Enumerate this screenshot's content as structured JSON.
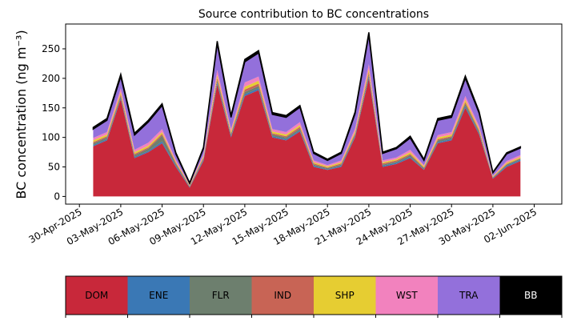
{
  "chart_data": {
    "type": "stacked_area",
    "title": "Source contribution to BC concentrations",
    "ylabel": "BC concentration (ng m⁻³)",
    "x": [
      "2025-05-01",
      "2025-05-02",
      "2025-05-03",
      "2025-05-04",
      "2025-05-05",
      "2025-05-06",
      "2025-05-07",
      "2025-05-08",
      "2025-05-09",
      "2025-05-10",
      "2025-05-11",
      "2025-05-12",
      "2025-05-13",
      "2025-05-14",
      "2025-05-15",
      "2025-05-16",
      "2025-05-17",
      "2025-05-18",
      "2025-05-19",
      "2025-05-20",
      "2025-05-21",
      "2025-05-22",
      "2025-05-23",
      "2025-05-24",
      "2025-05-25",
      "2025-05-26",
      "2025-05-27",
      "2025-05-28",
      "2025-05-29",
      "2025-05-30",
      "2025-05-31",
      "2025-06-01"
    ],
    "xlim": [
      "2025-04-29",
      "2025-06-04"
    ],
    "xticks": [
      {
        "value": "2025-04-30",
        "label": "30-Apr-2025"
      },
      {
        "value": "2025-05-03",
        "label": "03-May-2025"
      },
      {
        "value": "2025-05-06",
        "label": "06-May-2025"
      },
      {
        "value": "2025-05-09",
        "label": "09-May-2025"
      },
      {
        "value": "2025-05-12",
        "label": "12-May-2025"
      },
      {
        "value": "2025-05-15",
        "label": "15-May-2025"
      },
      {
        "value": "2025-05-18",
        "label": "18-May-2025"
      },
      {
        "value": "2025-05-21",
        "label": "21-May-2025"
      },
      {
        "value": "2025-05-24",
        "label": "24-May-2025"
      },
      {
        "value": "2025-05-27",
        "label": "27-May-2025"
      },
      {
        "value": "2025-05-30",
        "label": "30-May-2025"
      },
      {
        "value": "2025-06-02",
        "label": "02-Jun-2025"
      }
    ],
    "ylim": [
      -13,
      292
    ],
    "yticks": [
      0,
      50,
      100,
      150,
      200,
      250
    ],
    "legend": "bottom",
    "series": [
      {
        "name": "DOM",
        "color": "#c8283a",
        "values": [
          85,
          95,
          165,
          65,
          75,
          90,
          50,
          15,
          60,
          190,
          100,
          170,
          180,
          100,
          95,
          110,
          50,
          45,
          50,
          100,
          200,
          50,
          55,
          65,
          45,
          90,
          95,
          150,
          105,
          30,
          50,
          60
        ]
      },
      {
        "name": "ENE",
        "color": "#3a78b5",
        "values": [
          2,
          2,
          2,
          2,
          2,
          3,
          2,
          1,
          2,
          3,
          2,
          3,
          3,
          2,
          2,
          2,
          2,
          1,
          2,
          2,
          3,
          2,
          2,
          2,
          1,
          2,
          2,
          3,
          2,
          1,
          2,
          2
        ]
      },
      {
        "name": "FLR",
        "color": "#6d7f6e",
        "values": [
          3,
          3,
          3,
          3,
          4,
          10,
          3,
          1,
          2,
          4,
          3,
          4,
          4,
          3,
          3,
          3,
          2,
          2,
          2,
          3,
          4,
          2,
          2,
          3,
          2,
          3,
          3,
          4,
          3,
          1,
          2,
          2
        ]
      },
      {
        "name": "IND",
        "color": "#c86455",
        "values": [
          2,
          2,
          3,
          2,
          2,
          3,
          2,
          1,
          2,
          4,
          2,
          4,
          4,
          2,
          2,
          3,
          2,
          1,
          2,
          2,
          4,
          2,
          2,
          2,
          1,
          2,
          2,
          3,
          2,
          1,
          1,
          1
        ]
      },
      {
        "name": "SHP",
        "color": "#e6cd32",
        "values": [
          3,
          3,
          4,
          3,
          3,
          3,
          2,
          1,
          2,
          5,
          3,
          5,
          5,
          3,
          3,
          3,
          2,
          2,
          2,
          3,
          5,
          2,
          2,
          3,
          2,
          3,
          3,
          4,
          3,
          1,
          2,
          2
        ]
      },
      {
        "name": "WST",
        "color": "#f282be",
        "values": [
          4,
          4,
          6,
          4,
          5,
          5,
          3,
          1,
          3,
          8,
          4,
          7,
          7,
          4,
          4,
          5,
          3,
          2,
          3,
          5,
          8,
          3,
          3,
          4,
          2,
          4,
          4,
          6,
          4,
          1,
          3,
          3
        ]
      },
      {
        "name": "TRA",
        "color": "#9370db",
        "values": [
          15,
          20,
          20,
          25,
          35,
          40,
          10,
          2,
          10,
          45,
          20,
          35,
          40,
          25,
          25,
          25,
          12,
          8,
          12,
          25,
          50,
          12,
          15,
          20,
          8,
          25,
          25,
          30,
          22,
          5,
          12,
          12
        ]
      },
      {
        "name": "BB",
        "color": "#000000",
        "values": [
          3,
          3,
          4,
          3,
          3,
          3,
          2,
          1,
          2,
          4,
          3,
          4,
          4,
          3,
          3,
          3,
          2,
          2,
          2,
          3,
          4,
          2,
          2,
          3,
          2,
          3,
          3,
          4,
          3,
          1,
          2,
          2
        ]
      }
    ]
  }
}
